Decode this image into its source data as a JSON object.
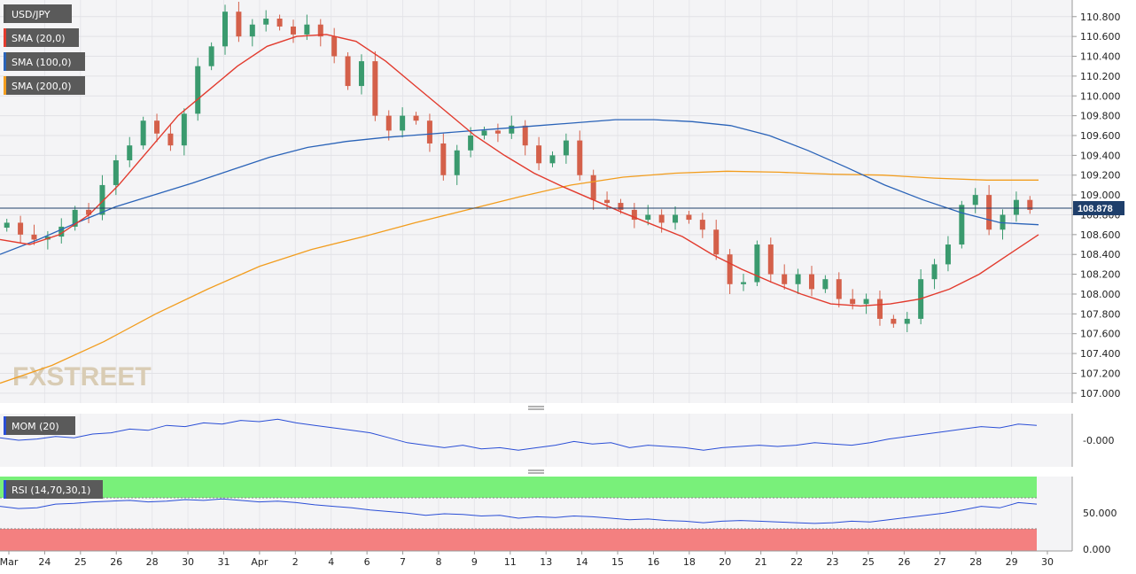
{
  "chart_data": [
    {
      "type": "candlestick",
      "symbol": "USD/JPY",
      "ylim": [
        106.9,
        110.95
      ],
      "y_ticks": [
        "110.800",
        "110.600",
        "110.400",
        "110.200",
        "110.000",
        "109.800",
        "109.600",
        "109.400",
        "109.200",
        "109.000",
        "108.800",
        "108.600",
        "108.400",
        "108.200",
        "108.000",
        "107.800",
        "107.600",
        "107.400",
        "107.200",
        "107.000"
      ],
      "last_price": "108.878",
      "x_labels": [
        "Mar",
        "24",
        "25",
        "26",
        "28",
        "30",
        "31",
        "Apr",
        "2",
        "4",
        "6",
        "7",
        "8",
        "9",
        "11",
        "13",
        "14",
        "15",
        "16",
        "18",
        "20",
        "21",
        "22",
        "23",
        "25",
        "26",
        "27",
        "28",
        "29",
        "30"
      ],
      "legend": [
        {
          "label": "USD/JPY",
          "color": "#555555"
        },
        {
          "label": "SMA (20,0)",
          "color": "#e23b2e"
        },
        {
          "label": "SMA (100,0)",
          "color": "#2a63b8"
        },
        {
          "label": "SMA (200,0)",
          "color": "#f29d1e"
        }
      ],
      "colors": {
        "up": "#3a9a6e",
        "down": "#d4604a",
        "sma20": "#e23b2e",
        "sma100": "#2a63b8",
        "sma200": "#f29d1e",
        "price_line": "#1f3f6b"
      },
      "price_path": [
        108.72,
        108.6,
        108.55,
        108.58,
        108.68,
        108.85,
        108.8,
        109.1,
        109.35,
        109.5,
        109.75,
        109.62,
        109.5,
        109.82,
        110.3,
        110.5,
        110.85,
        110.6,
        110.72,
        110.78,
        110.7,
        110.62,
        110.72,
        110.6,
        110.4,
        110.1,
        110.35,
        109.8,
        109.65,
        109.8,
        109.75,
        109.52,
        109.2,
        109.45,
        109.6,
        109.65,
        109.62,
        109.7,
        109.5,
        109.32,
        109.4,
        109.55,
        109.2,
        108.95,
        108.92,
        108.85,
        108.75,
        108.8,
        108.72,
        108.8,
        108.75,
        108.65,
        108.4,
        108.1,
        108.12,
        108.5,
        108.2,
        108.1,
        108.2,
        108.05,
        108.15,
        107.95,
        107.9,
        107.95,
        107.75,
        107.7,
        107.75,
        108.15,
        108.3,
        108.5,
        108.9,
        109.0,
        108.65,
        108.8,
        108.95,
        108.85
      ],
      "sma20": [
        108.55,
        108.5,
        108.6,
        108.8,
        109.1,
        109.45,
        109.8,
        110.05,
        110.3,
        110.5,
        110.6,
        110.62,
        110.55,
        110.35,
        110.1,
        109.85,
        109.6,
        109.4,
        109.22,
        109.08,
        108.95,
        108.82,
        108.7,
        108.58,
        108.4,
        108.25,
        108.12,
        108.0,
        107.9,
        107.88,
        107.9,
        107.95,
        108.05,
        108.2,
        108.4,
        108.6
      ],
      "sma100": [
        108.4,
        108.55,
        108.72,
        108.88,
        109.0,
        109.12,
        109.25,
        109.38,
        109.48,
        109.54,
        109.58,
        109.61,
        109.64,
        109.67,
        109.7,
        109.73,
        109.76,
        109.76,
        109.74,
        109.7,
        109.6,
        109.45,
        109.28,
        109.1,
        108.95,
        108.82,
        108.72,
        108.7
      ],
      "sma200": [
        107.1,
        107.28,
        107.52,
        107.8,
        108.05,
        108.28,
        108.45,
        108.58,
        108.72,
        108.85,
        108.98,
        109.1,
        109.18,
        109.22,
        109.24,
        109.23,
        109.21,
        109.2,
        109.17,
        109.15,
        109.15
      ],
      "watermark": "FXSTREET"
    },
    {
      "type": "line",
      "label": "MOM (20)",
      "y_tick": "-0.000",
      "values": [
        0.2,
        0.0,
        0.1,
        0.3,
        0.2,
        0.5,
        0.6,
        0.9,
        0.8,
        1.2,
        1.1,
        1.4,
        1.3,
        1.6,
        1.5,
        1.7,
        1.4,
        1.2,
        1.0,
        0.8,
        0.6,
        0.2,
        -0.2,
        -0.4,
        -0.6,
        -0.4,
        -0.7,
        -0.6,
        -0.8,
        -0.6,
        -0.4,
        -0.1,
        -0.3,
        -0.2,
        -0.6,
        -0.4,
        -0.5,
        -0.6,
        -0.8,
        -0.6,
        -0.5,
        -0.4,
        -0.5,
        -0.4,
        -0.2,
        -0.3,
        -0.4,
        -0.2,
        0.1,
        0.3,
        0.5,
        0.7,
        0.9,
        1.1,
        1.0,
        1.3,
        1.2
      ]
    },
    {
      "type": "line",
      "label": "RSI (14,70,30,1)",
      "y_ticks": [
        "50.000",
        "0.000"
      ],
      "overbought": 70,
      "oversold": 30,
      "values": [
        60,
        57,
        58,
        63,
        64,
        66,
        67,
        68,
        66,
        67,
        69,
        68,
        70,
        68,
        66,
        67,
        65,
        62,
        60,
        58,
        55,
        53,
        51,
        48,
        50,
        49,
        47,
        48,
        44,
        46,
        45,
        47,
        46,
        44,
        42,
        43,
        41,
        40,
        38,
        40,
        41,
        40,
        39,
        38,
        37,
        38,
        40,
        39,
        42,
        45,
        48,
        51,
        55,
        60,
        58,
        65,
        63
      ]
    }
  ]
}
